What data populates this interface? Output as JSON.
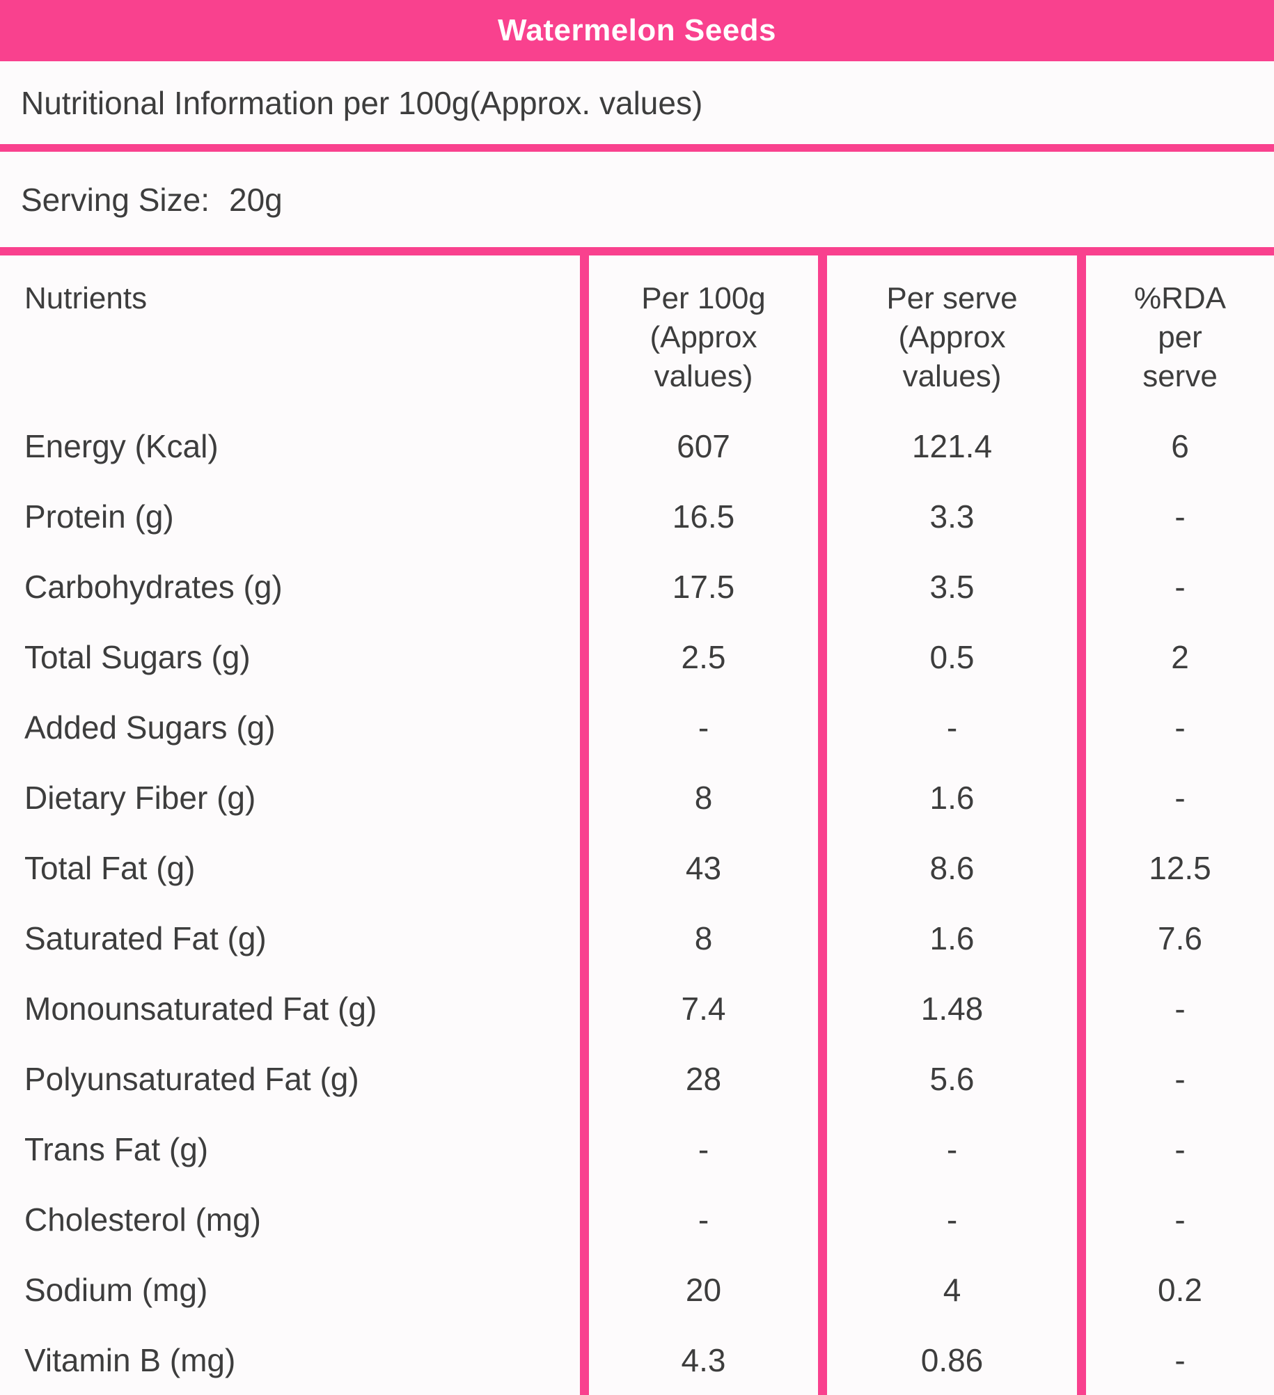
{
  "colors": {
    "accent_pink": "#f9418e",
    "text": "#3d3d3d",
    "title_text": "#ffffff"
  },
  "header": {
    "title": "Watermelon Seeds"
  },
  "info": {
    "nutrition_line": "Nutritional Information per 100g(Approx. values)"
  },
  "serving": {
    "label": "Serving Size:",
    "value": "20g"
  },
  "table": {
    "headers": {
      "nutrients": "Nutrients",
      "per100g": [
        "Per 100g",
        "(Approx",
        "values)"
      ],
      "perserve": [
        "Per serve",
        "(Approx",
        "values)"
      ],
      "rda": [
        "%RDA",
        "per",
        "serve"
      ]
    },
    "rows": [
      {
        "name": "Energy (Kcal)",
        "per100g": "607",
        "perserve": "121.4",
        "rda": "6"
      },
      {
        "name": "Protein (g)",
        "per100g": "16.5",
        "perserve": "3.3",
        "rda": "-"
      },
      {
        "name": "Carbohydrates (g)",
        "per100g": "17.5",
        "perserve": "3.5",
        "rda": "-"
      },
      {
        "name": "Total Sugars (g)",
        "per100g": "2.5",
        "perserve": "0.5",
        "rda": "2"
      },
      {
        "name": "Added Sugars (g)",
        "per100g": "-",
        "perserve": "-",
        "rda": "-"
      },
      {
        "name": "Dietary Fiber (g)",
        "per100g": "8",
        "perserve": "1.6",
        "rda": "-"
      },
      {
        "name": "Total Fat (g)",
        "per100g": "43",
        "perserve": "8.6",
        "rda": "12.5"
      },
      {
        "name": "Saturated Fat (g)",
        "per100g": "8",
        "perserve": "1.6",
        "rda": "7.6"
      },
      {
        "name": "Monounsaturated Fat (g)",
        "per100g": "7.4",
        "perserve": "1.48",
        "rda": "-"
      },
      {
        "name": "Polyunsaturated Fat (g)",
        "per100g": "28",
        "perserve": "5.6",
        "rda": "-"
      },
      {
        "name": "Trans Fat (g)",
        "per100g": "-",
        "perserve": "-",
        "rda": "-"
      },
      {
        "name": "Cholesterol (mg)",
        "per100g": "-",
        "perserve": "-",
        "rda": "-"
      },
      {
        "name": "Sodium (mg)",
        "per100g": "20",
        "perserve": "4",
        "rda": "0.2"
      },
      {
        "name": "Vitamin B (mg)",
        "per100g": "4.3",
        "perserve": "0.86",
        "rda": "-"
      }
    ]
  }
}
